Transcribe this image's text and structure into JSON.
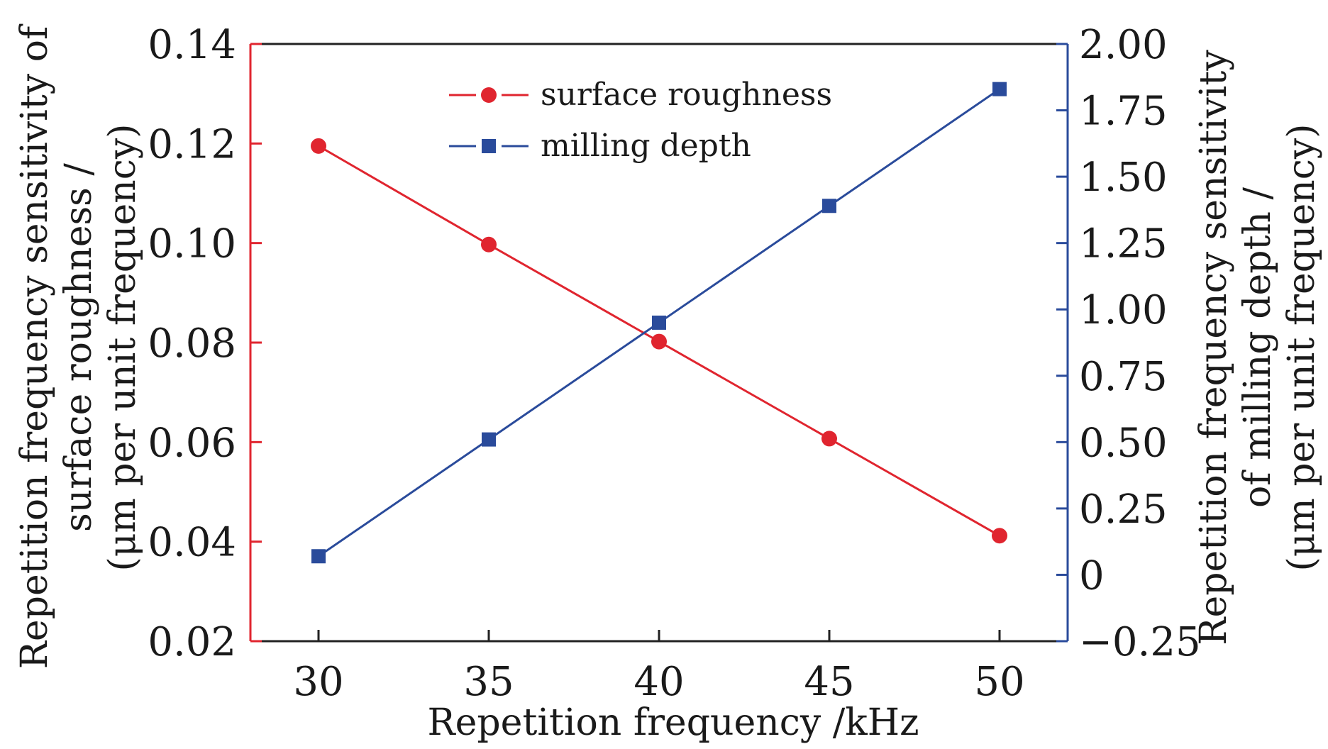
{
  "chart_data": {
    "type": "line",
    "title": "",
    "x": [
      30,
      35,
      40,
      45,
      50
    ],
    "xlabel": "Repetition frequency /kHz",
    "xlim": [
      28,
      52
    ],
    "xticks": [
      30,
      35,
      40,
      45,
      50
    ],
    "xtick_labels": [
      "30",
      "35",
      "40",
      "45",
      "50"
    ],
    "y_left": {
      "label_lines": [
        "Repetition frequency sensitivity of",
        "surface roughness /",
        "(μm per unit frequency)"
      ],
      "lim": [
        0.02,
        0.14
      ],
      "ticks": [
        0.02,
        0.04,
        0.06,
        0.08,
        0.1,
        0.12,
        0.14
      ],
      "tick_labels": [
        "0.02",
        "0.04",
        "0.06",
        "0.08",
        "0.10",
        "0.12",
        "0.14"
      ],
      "color": "#e0252f"
    },
    "y_right": {
      "label_lines": [
        "Repetition frequency sensitivity",
        "of milling depth /",
        "(μm per unit frequency)"
      ],
      "lim": [
        -0.25,
        2.0
      ],
      "ticks": [
        -0.25,
        0,
        0.25,
        0.5,
        0.75,
        1.0,
        1.25,
        1.5,
        1.75,
        2.0
      ],
      "tick_labels": [
        "−0.25",
        "0",
        "0.25",
        "0.50",
        "0.75",
        "1.00",
        "1.25",
        "1.50",
        "1.75",
        "2.00"
      ],
      "color": "#2a4b9b"
    },
    "series": [
      {
        "name": "surface roughness",
        "axis": "left",
        "marker": "circle",
        "color": "#e0252f",
        "values": [
          0.1195,
          0.0997,
          0.0802,
          0.0607,
          0.0412
        ]
      },
      {
        "name": "milling depth",
        "axis": "right",
        "marker": "square",
        "color": "#2a4b9b",
        "values": [
          0.07,
          0.51,
          0.95,
          1.39,
          1.83
        ]
      }
    ],
    "legend_position": "top-center",
    "grid": false
  }
}
